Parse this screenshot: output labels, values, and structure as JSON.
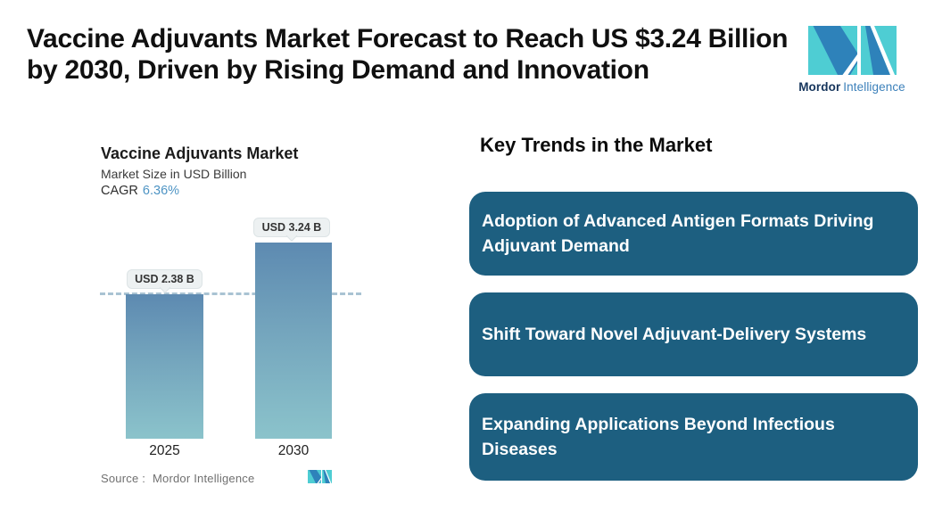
{
  "page": {
    "background_color": "#ffffff"
  },
  "header": {
    "title_line1": "Vaccine Adjuvants Market Forecast to Reach US $3.24 Billion",
    "title_line2": "by 2030, Driven by Rising Demand and Innovation",
    "logo": {
      "brand_bold": "Mordor",
      "brand_light": "Intelligence",
      "teal": "#4ecdd3",
      "blue": "#2e82ba"
    }
  },
  "chart_data": {
    "type": "bar",
    "title": "Vaccine Adjuvants Market",
    "subtitle": "Market Size in USD Billion",
    "cagr_label": "CAGR",
    "cagr_value": "6.36%",
    "categories": [
      "2025",
      "2030"
    ],
    "values": [
      2.38,
      3.24
    ],
    "value_labels": [
      "USD 2.38 B",
      "USD 3.24 B"
    ],
    "unit": "USD Billion",
    "ylim": [
      0,
      3.24
    ],
    "reference_line_value": 2.38,
    "grid": false,
    "legend": "none",
    "source_label": "Source :",
    "source_value": "Mordor Intelligence",
    "bar_gradient_top": "#5d8ab1",
    "bar_gradient_bottom": "#8bc3cb",
    "reference_line_color": "#a9c3d3",
    "cagr_accent_color": "#4e94c4"
  },
  "key_trends": {
    "heading": "Key Trends in the Market",
    "box_color": "#1d5f80",
    "text_color": "#ffffff",
    "items": [
      "Adoption of Advanced Antigen Formats Driving Adjuvant Demand",
      "Shift Toward Novel Adjuvant-Delivery Systems",
      "Expanding Applications Beyond Infectious Diseases"
    ]
  }
}
